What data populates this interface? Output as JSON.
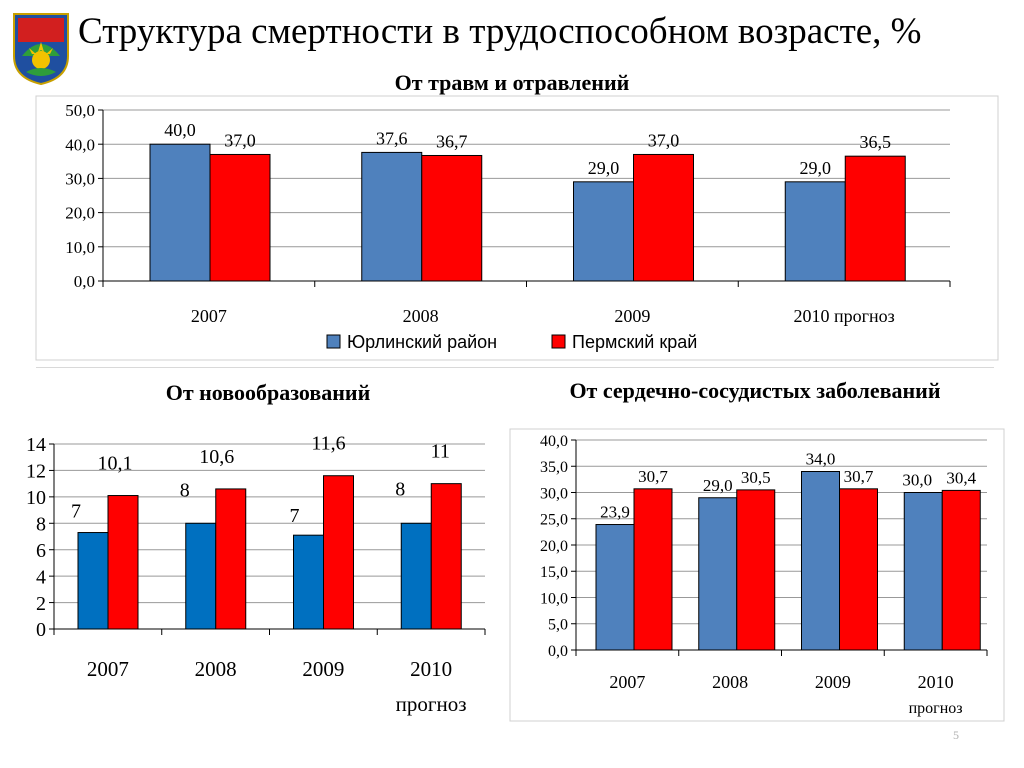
{
  "title": "Структура смертности в трудоспособном возрасте, %",
  "page_number": "5",
  "colors": {
    "series_a": "#4f81bd",
    "series_a_dark": "#0070c0",
    "series_b": "#ff0000",
    "bar_stroke": "#000000"
  },
  "chart_data": [
    {
      "type": "bar",
      "title": "От травм и отравлений",
      "categories": [
        "2007",
        "2008",
        "2009",
        "2010 прогноз"
      ],
      "series": [
        {
          "name": "Юрлинский район",
          "values": [
            40.0,
            37.6,
            29.0,
            29.0
          ]
        },
        {
          "name": "Пермский край",
          "values": [
            37.0,
            36.7,
            37.0,
            36.5
          ]
        }
      ],
      "value_labels": [
        [
          "40,0",
          "37,6",
          "29,0",
          "29,0"
        ],
        [
          "37,0",
          "36,7",
          "37,0",
          "36,5"
        ]
      ],
      "ylim": [
        0,
        50
      ],
      "yticks": [
        "0,0",
        "10,0",
        "20,0",
        "30,0",
        "40,0",
        "50,0"
      ],
      "grid": true,
      "legend": "bottom"
    },
    {
      "type": "bar",
      "title": "От новообразований",
      "categories": [
        "2007",
        "2008",
        "2009",
        "2010"
      ],
      "category_sublabel": "прогноз",
      "series": [
        {
          "values": [
            7.3,
            8.0,
            7.1,
            8.0
          ]
        },
        {
          "values": [
            10.1,
            10.6,
            11.6,
            11.0
          ]
        }
      ],
      "value_labels": [
        [
          "7",
          "8",
          "7",
          "8"
        ],
        [
          "10,1",
          "10,6",
          "11,6",
          "11"
        ]
      ],
      "ylim": [
        0,
        14
      ],
      "yticks": [
        "0",
        "2",
        "4",
        "6",
        "8",
        "10",
        "12",
        "14"
      ],
      "grid": true,
      "legend": "none"
    },
    {
      "type": "bar",
      "title": "От сердечно-сосудистых заболеваний",
      "categories": [
        "2007",
        "2008",
        "2009",
        "2010"
      ],
      "category_sublabel": "прогноз",
      "series": [
        {
          "values": [
            23.9,
            29.0,
            34.0,
            30.0
          ]
        },
        {
          "values": [
            30.7,
            30.5,
            30.7,
            30.4
          ]
        }
      ],
      "value_labels": [
        [
          "23,9",
          "29,0",
          "34,0",
          "30,0"
        ],
        [
          "30,7",
          "30,5",
          "30,7",
          "30,4"
        ]
      ],
      "ylim": [
        0,
        40
      ],
      "yticks": [
        "0,0",
        "5,0",
        "10,0",
        "15,0",
        "20,0",
        "25,0",
        "30,0",
        "35,0",
        "40,0"
      ],
      "grid": true,
      "legend": "none"
    }
  ]
}
